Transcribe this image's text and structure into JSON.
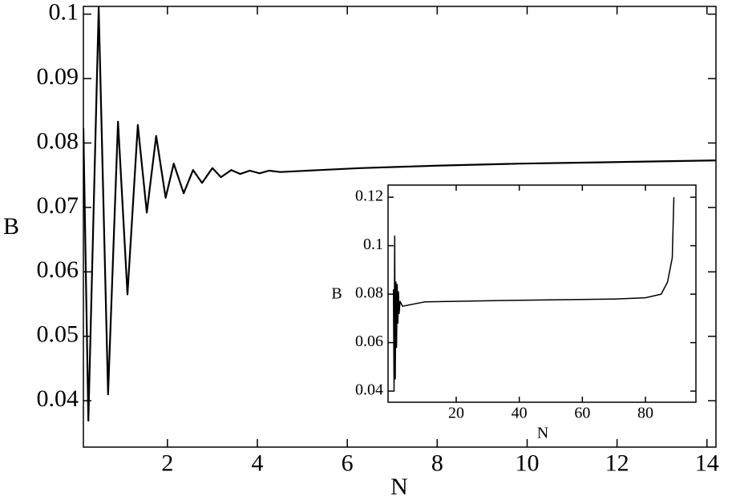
{
  "chart_data": [
    {
      "type": "line",
      "xlabel": "N",
      "ylabel": "B",
      "xlim": [
        0.13,
        14.2
      ],
      "ylim": [
        0.0328,
        0.1012
      ],
      "xticks": [
        2,
        4,
        6,
        8,
        10,
        12,
        14
      ],
      "yticks": [
        0.04,
        0.05,
        0.06,
        0.07,
        0.08,
        0.09,
        0.1
      ],
      "color": "#000000",
      "x": [
        0.13,
        0.24,
        0.47,
        0.68,
        0.9,
        1.11,
        1.34,
        1.54,
        1.75,
        1.96,
        2.14,
        2.36,
        2.57,
        2.77,
        3.0,
        3.19,
        3.42,
        3.62,
        3.83,
        4.05,
        4.26,
        4.51,
        5.4,
        6.29,
        8.07,
        9.85,
        11.63,
        14.2
      ],
      "values": [
        0.0823,
        0.0369,
        0.101,
        0.041,
        0.0833,
        0.0565,
        0.0828,
        0.0692,
        0.0811,
        0.0715,
        0.0768,
        0.0722,
        0.0758,
        0.0738,
        0.0761,
        0.0747,
        0.0758,
        0.0752,
        0.0757,
        0.0753,
        0.0757,
        0.0755,
        0.0758,
        0.0761,
        0.0765,
        0.0768,
        0.077,
        0.0773
      ]
    },
    {
      "type": "line",
      "xlabel": "N",
      "ylabel": "B",
      "xlim": [
        -1.6,
        96
      ],
      "ylim": [
        0.0354,
        0.125
      ],
      "xticks": [
        20,
        40,
        60,
        80
      ],
      "yticks": [
        0.04,
        0.06,
        0.08,
        0.1,
        0.12
      ],
      "color": "#000000",
      "x": [
        0.1,
        0.3,
        0.5,
        0.7,
        0.9,
        1.1,
        1.3,
        1.5,
        1.7,
        1.9,
        2.2,
        3,
        10,
        40,
        70,
        80,
        85,
        87,
        88.5,
        89
      ],
      "values": [
        0.082,
        0.04,
        0.104,
        0.045,
        0.085,
        0.058,
        0.084,
        0.068,
        0.081,
        0.072,
        0.077,
        0.075,
        0.0768,
        0.0775,
        0.078,
        0.0785,
        0.08,
        0.085,
        0.095,
        0.12
      ]
    }
  ]
}
